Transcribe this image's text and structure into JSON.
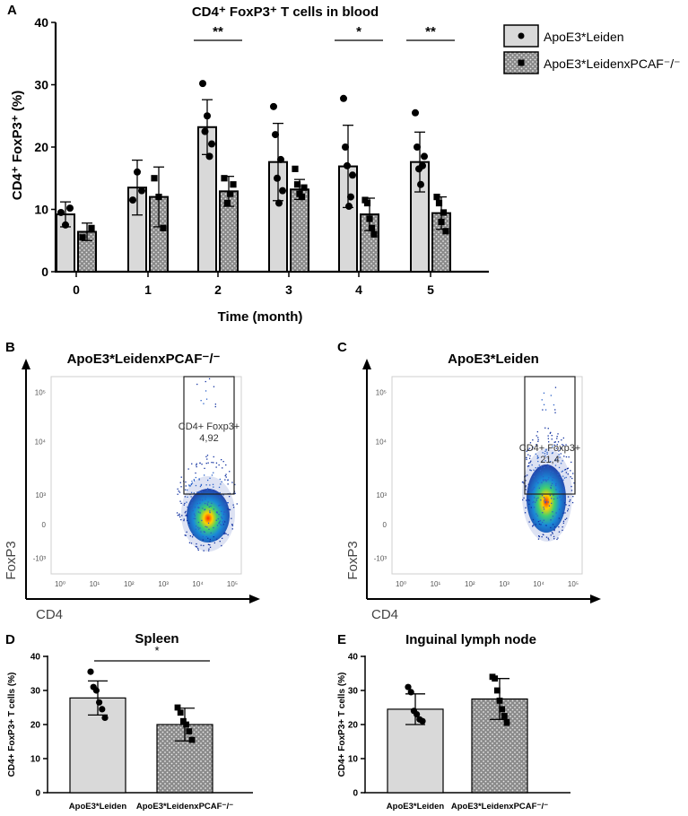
{
  "panels": {
    "a": {
      "letter": "A",
      "title": "CD4⁺ FoxP3⁺ T cells in blood",
      "ylabel": "CD4⁺ FoxP3⁺ (%)",
      "xlabel": "Time (month)"
    },
    "b": {
      "letter": "B",
      "title": "ApoE3*LeidenxPCAF⁻/⁻",
      "gate_label": "CD4+ Foxp3+",
      "gate_value": "4,92",
      "xaxis": "CD4",
      "yaxis": "FoxP3"
    },
    "c": {
      "letter": "C",
      "title": "ApoE3*Leiden",
      "gate_label": "CD4+ Foxp3+",
      "gate_value": "21,4",
      "xaxis": "CD4",
      "yaxis": "FoxP3"
    },
    "d": {
      "letter": "D",
      "title": "Spleen",
      "ylabel": "CD4+ FoxP3+ T cells (%)",
      "sig": "*"
    },
    "e": {
      "letter": "E",
      "title": "Inguinal lymph node",
      "ylabel": "CD4+ FoxP3+ T cells (%)"
    }
  },
  "legend": {
    "series1": "ApoE3*Leiden",
    "series2": "ApoE3*LeidenxPCAF⁻/⁻"
  },
  "flow_ticks_x": [
    "10⁰",
    "10¹",
    "10²",
    "10³",
    "10⁴",
    "10⁵"
  ],
  "flow_ticks_y": [
    "10⁵",
    "10⁴",
    "10³",
    "0",
    "-10³"
  ],
  "colors": {
    "leiden": "#d9d9d9",
    "pcaf": "#8a8a8a",
    "ink": "#000000"
  },
  "chart_data": [
    {
      "type": "bar",
      "title": "CD4⁺ FoxP3⁺ T cells in blood",
      "xlabel": "Time (month)",
      "ylabel": "CD4⁺ FoxP3⁺ (%)",
      "ylim": [
        0,
        40
      ],
      "yticks": [
        0,
        10,
        20,
        30,
        40
      ],
      "categories": [
        "0",
        "1",
        "2",
        "3",
        "4",
        "5"
      ],
      "series": [
        {
          "name": "ApoE3*Leiden",
          "values": [
            9.2,
            13.5,
            23.2,
            17.6,
            16.9,
            17.6
          ],
          "sd": [
            2.0,
            4.4,
            4.4,
            6.2,
            6.6,
            4.8
          ],
          "points": [
            [
              9.5,
              7.5,
              10.2
            ],
            [
              11.5,
              16.0,
              13.0
            ],
            [
              30.2,
              22.5,
              25.0,
              18.5,
              20.5
            ],
            [
              26.5,
              22.0,
              15.0,
              11.0,
              18.0,
              13.0
            ],
            [
              27.8,
              20.0,
              17.0,
              10.5,
              12.0,
              15.5
            ],
            [
              25.5,
              20.0,
              16.5,
              14.0,
              17.0,
              18.5
            ]
          ]
        },
        {
          "name": "ApoE3*LeidenxPCAF⁻/⁻",
          "values": [
            6.4,
            12.0,
            12.9,
            13.2,
            9.2,
            9.4
          ],
          "sd": [
            1.4,
            4.8,
            2.4,
            1.6,
            2.6,
            2.6
          ],
          "points": [
            [
              5.5,
              7.0
            ],
            [
              15.0,
              12.0,
              7.0
            ],
            [
              15.0,
              11.0,
              12.5,
              14.0
            ],
            [
              16.5,
              14.0,
              12.5,
              12.0,
              13.5
            ],
            [
              11.5,
              11.0,
              8.5,
              7.0,
              6.0
            ],
            [
              12.0,
              11.0,
              8.0,
              9.5,
              6.5
            ]
          ]
        }
      ],
      "significance": [
        {
          "category": "2",
          "label": "**"
        },
        {
          "category": "4",
          "label": "*"
        },
        {
          "category": "5",
          "label": "**"
        }
      ]
    },
    {
      "type": "bar",
      "title": "Spleen",
      "ylabel": "CD4+ FoxP3+ T cells (%)",
      "ylim": [
        0,
        40
      ],
      "yticks": [
        0,
        10,
        20,
        30,
        40
      ],
      "categories": [
        "ApoE3*Leiden",
        "ApoE3*LeidenxPCAF⁻/⁻"
      ],
      "values": [
        27.8,
        20.0
      ],
      "sd": [
        5.0,
        4.8
      ],
      "points": [
        [
          35.5,
          31.0,
          30.0,
          26.5,
          24.5,
          22.0
        ],
        [
          25.0,
          23.5,
          21.0,
          20.0,
          18.0,
          15.5
        ]
      ],
      "significance": [
        {
          "between": [
            0,
            1
          ],
          "label": "*"
        }
      ]
    },
    {
      "type": "bar",
      "title": "Inguinal lymph node",
      "ylabel": "CD4+ FoxP3+ T cells (%)",
      "ylim": [
        0,
        40
      ],
      "yticks": [
        0,
        10,
        20,
        30,
        40
      ],
      "categories": [
        "ApoE3*Leiden",
        "ApoE3*LeidenxPCAF⁻/⁻"
      ],
      "values": [
        24.5,
        27.5
      ],
      "sd": [
        4.5,
        6.0
      ],
      "points": [
        [
          31.0,
          29.5,
          24.0,
          23.0,
          21.5,
          21.0
        ],
        [
          34.0,
          33.5,
          30.0,
          27.0,
          24.5,
          22.5,
          20.5
        ]
      ]
    }
  ]
}
